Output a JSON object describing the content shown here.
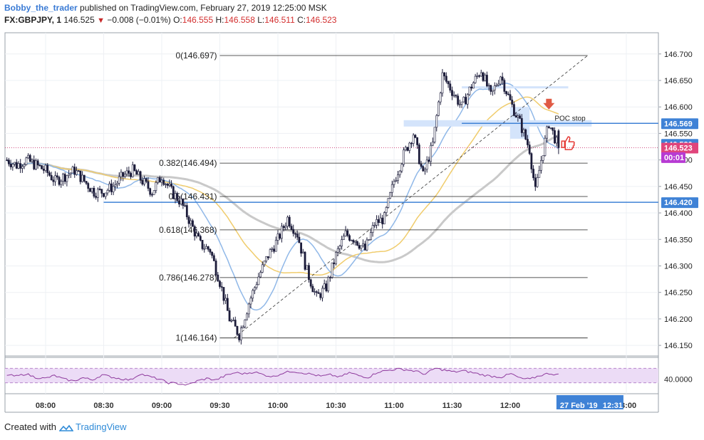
{
  "header": {
    "author": "Bobby_the_trader",
    "published_text": "published on TradingView.com, February 27, 2019 12:25:00 MSK",
    "symbol": "FX:GBPJPY, 1",
    "price": "146.525",
    "change": "−0.008 (−0.01%)",
    "o_label": "O:",
    "o_value": "146.555",
    "h_label": "H:",
    "h_value": "146.558",
    "l_label": "L:",
    "l_value": "146.511",
    "c_label": "C:",
    "c_value": "146.523"
  },
  "footer": {
    "created_with": "Created with",
    "brand": "TradingView"
  },
  "colors": {
    "candle": "#1c1c3a",
    "grid": "#eef0f4",
    "fib": "#222222",
    "level_line": "#3f82d6",
    "ma_blue": "#90b8e8",
    "ma_yellow": "#f0cc6c",
    "ma_gray": "#c9c9c9",
    "poc_zone": "#d4e4fb",
    "rsi_fill": "#ecdcf6",
    "rsi_line": "#8e3a9d",
    "label_blue": "#3f82d6",
    "label_pink": "#e0457b",
    "label_purple": "#b73bd3",
    "arrow_red": "#e05a44"
  },
  "chart_data": {
    "type": "candlestick",
    "title": "FX:GBPJPY, 1",
    "y_axis": {
      "range": [
        146.13,
        146.74
      ],
      "ticks": [
        "146.700",
        "146.650",
        "146.600",
        "146.550",
        "146.500",
        "146.450",
        "146.400",
        "146.350",
        "146.300",
        "146.250",
        "146.200",
        "146.150"
      ]
    },
    "x_axis": {
      "ticks": [
        "08:00",
        "08:30",
        "09:00",
        "09:30",
        "10:00",
        "10:30",
        "11:00",
        "11:30",
        "12:00",
        "13:00"
      ]
    },
    "close_anchors": [
      [
        "07:40",
        146.5
      ],
      [
        "07:45",
        146.49
      ],
      [
        "07:50",
        146.5
      ],
      [
        "07:55",
        146.49
      ],
      [
        "08:00",
        146.48
      ],
      [
        "08:05",
        146.46
      ],
      [
        "08:10",
        146.47
      ],
      [
        "08:15",
        146.48
      ],
      [
        "08:20",
        146.46
      ],
      [
        "08:25",
        146.44
      ],
      [
        "08:30",
        146.44
      ],
      [
        "08:35",
        146.45
      ],
      [
        "08:40",
        146.47
      ],
      [
        "08:45",
        146.48
      ],
      [
        "08:50",
        146.46
      ],
      [
        "08:55",
        146.44
      ],
      [
        "09:00",
        146.47
      ],
      [
        "09:05",
        146.44
      ],
      [
        "09:10",
        146.42
      ],
      [
        "09:15",
        146.38
      ],
      [
        "09:20",
        146.34
      ],
      [
        "09:25",
        146.33
      ],
      [
        "09:30",
        146.27
      ],
      [
        "09:35",
        146.2
      ],
      [
        "09:40",
        146.17
      ],
      [
        "09:45",
        146.23
      ],
      [
        "09:50",
        146.28
      ],
      [
        "09:55",
        146.32
      ],
      [
        "10:00",
        146.35
      ],
      [
        "10:05",
        146.39
      ],
      [
        "10:10",
        146.36
      ],
      [
        "10:15",
        146.29
      ],
      [
        "10:20",
        146.24
      ],
      [
        "10:25",
        146.26
      ],
      [
        "10:30",
        146.32
      ],
      [
        "10:35",
        146.36
      ],
      [
        "10:40",
        146.35
      ],
      [
        "10:45",
        146.33
      ],
      [
        "10:50",
        146.38
      ],
      [
        "10:55",
        146.39
      ],
      [
        "11:00",
        146.46
      ],
      [
        "11:05",
        146.51
      ],
      [
        "11:10",
        146.55
      ],
      [
        "11:15",
        146.47
      ],
      [
        "11:20",
        146.53
      ],
      [
        "11:25",
        146.66
      ],
      [
        "11:30",
        146.63
      ],
      [
        "11:35",
        146.6
      ],
      [
        "11:40",
        146.64
      ],
      [
        "11:45",
        146.67
      ],
      [
        "11:50",
        146.62
      ],
      [
        "11:55",
        146.66
      ],
      [
        "12:00",
        146.61
      ],
      [
        "12:05",
        146.57
      ],
      [
        "12:10",
        146.52
      ],
      [
        "12:13",
        146.44
      ],
      [
        "12:16",
        146.5
      ],
      [
        "12:20",
        146.57
      ],
      [
        "12:25",
        146.523
      ]
    ],
    "last_candle": {
      "open": 146.555,
      "high": 146.558,
      "low": 146.511,
      "close": 146.523
    },
    "fibonacci": [
      {
        "label": "0(146.697)",
        "value": 146.697
      },
      {
        "label": "0.382(146.494)",
        "value": 146.494
      },
      {
        "label": "0.5(146.431)",
        "value": 146.431
      },
      {
        "label": "0.618(146.368)",
        "value": 146.368
      },
      {
        "label": "0.786(146.278)",
        "value": 146.278
      },
      {
        "label": "1(146.164)",
        "value": 146.164
      }
    ],
    "price_labels": [
      {
        "text": "146.569",
        "value": 146.569,
        "style": "blue"
      },
      {
        "text": "146.530",
        "value": 146.53,
        "style": "blue"
      },
      {
        "text": "146.523",
        "value": 146.523,
        "style": "pink"
      },
      {
        "text": "00:01",
        "value": 146.505,
        "style": "purple"
      },
      {
        "text": "146.420",
        "value": 146.42,
        "style": "blue"
      }
    ],
    "poc_label": "POC stop",
    "horizontal_levels": [
      146.569,
      146.42
    ],
    "date_label": "27 Feb '19",
    "time_label": "12:31",
    "rsi": {
      "tick": "40.0000",
      "band_upper": 70,
      "band_lower": 30,
      "values": [
        52,
        48,
        55,
        45,
        42,
        50,
        40,
        35,
        44,
        38,
        52,
        46,
        41,
        38,
        55,
        47,
        40,
        30,
        28,
        24,
        35,
        42,
        38,
        50,
        58,
        55,
        60,
        52,
        47,
        57,
        62,
        58,
        54,
        48,
        52,
        46,
        58,
        50,
        45,
        60,
        64,
        68,
        66,
        62,
        54,
        70,
        65,
        60,
        63,
        58,
        52,
        48,
        46,
        55,
        42,
        40,
        50,
        56,
        52
      ]
    },
    "grid": true
  }
}
